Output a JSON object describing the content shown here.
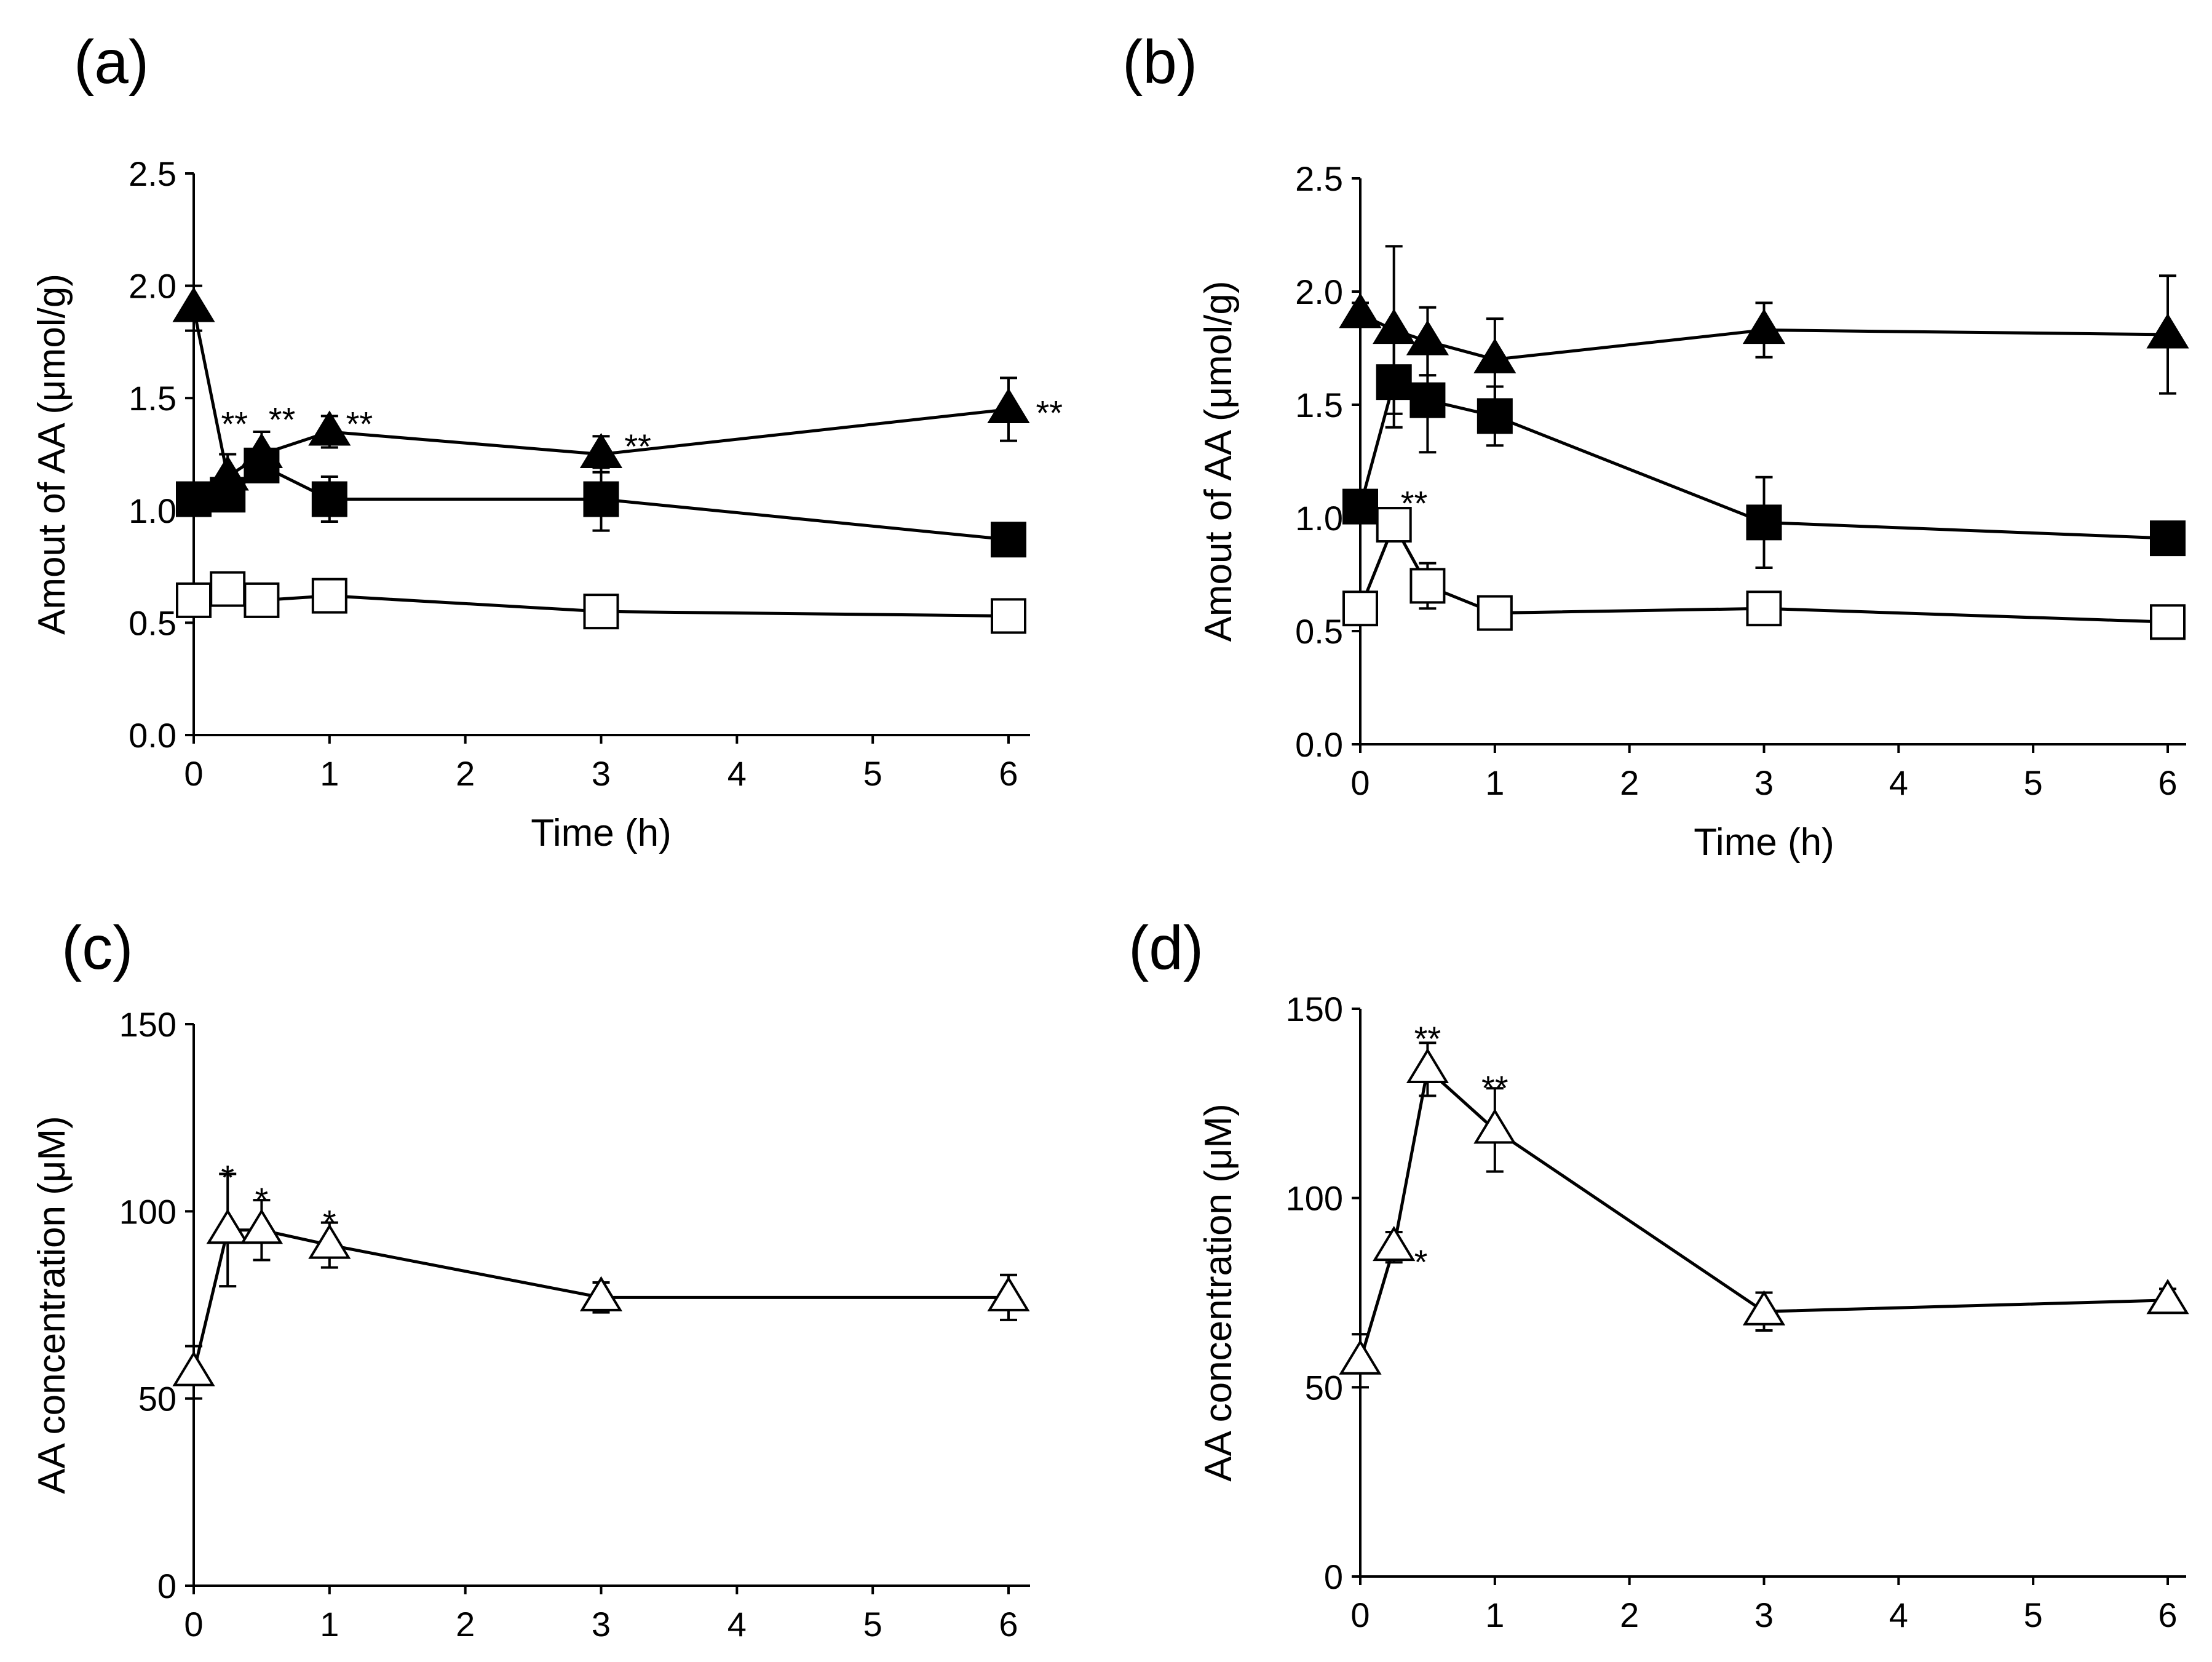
{
  "chart_data": [
    {
      "id": "a",
      "type": "line",
      "panel_label": "(a)",
      "xlabel": "Time (h)",
      "ylabel": "Amout of AA (μmol/g)",
      "xlim": [
        0,
        6
      ],
      "ylim": [
        0,
        2.5
      ],
      "xticks": [
        0,
        1,
        2,
        3,
        4,
        5,
        6
      ],
      "yticks": [
        "0.0",
        "0.5",
        "1.0",
        "1.5",
        "2.0",
        "2.5"
      ],
      "series": [
        {
          "name": "filled-triangle",
          "marker": "triangle-filled",
          "x": [
            0,
            0.25,
            0.5,
            1,
            3,
            6
          ],
          "values": [
            1.9,
            1.15,
            1.25,
            1.35,
            1.25,
            1.45
          ],
          "err": [
            0.1,
            0.1,
            0.1,
            0.07,
            0.08,
            0.14
          ]
        },
        {
          "name": "filled-square",
          "marker": "square-filled",
          "x": [
            0,
            0.25,
            0.5,
            1,
            3,
            6
          ],
          "values": [
            1.05,
            1.07,
            1.2,
            1.05,
            1.05,
            0.87
          ],
          "err": [
            0.04,
            0.05,
            0.05,
            0.1,
            0.14,
            0.03
          ]
        },
        {
          "name": "open-square",
          "marker": "square-open",
          "x": [
            0,
            0.25,
            0.5,
            1,
            3,
            6
          ],
          "values": [
            0.6,
            0.65,
            0.6,
            0.62,
            0.55,
            0.53
          ],
          "err": [
            0.04,
            0.04,
            0.03,
            0.03,
            0.03,
            0.03
          ]
        }
      ],
      "annotations": [
        {
          "text": "**",
          "x": 0.3,
          "y": 1.4
        },
        {
          "text": "**",
          "x": 0.65,
          "y": 1.42
        },
        {
          "text": "**",
          "x": 1.22,
          "y": 1.4
        },
        {
          "text": "**",
          "x": 3.27,
          "y": 1.3
        },
        {
          "text": "**",
          "x": 6.3,
          "y": 1.45
        }
      ]
    },
    {
      "id": "b",
      "type": "line",
      "panel_label": "(b)",
      "xlabel": "Time (h)",
      "ylabel": "Amout of AA (μmol/g)",
      "xlim": [
        0,
        6
      ],
      "ylim": [
        0,
        2.5
      ],
      "xticks": [
        0,
        1,
        2,
        3,
        4,
        5,
        6
      ],
      "yticks": [
        "0.0",
        "0.5",
        "1.0",
        "1.5",
        "2.0",
        "2.5"
      ],
      "series": [
        {
          "name": "filled-triangle",
          "marker": "triangle-filled",
          "x": [
            0,
            0.25,
            0.5,
            1,
            3,
            6
          ],
          "values": [
            1.9,
            1.83,
            1.78,
            1.7,
            1.83,
            1.81
          ],
          "err": [
            0.05,
            0.37,
            0.15,
            0.18,
            0.12,
            0.26
          ]
        },
        {
          "name": "filled-square",
          "marker": "square-filled",
          "x": [
            0,
            0.25,
            0.5,
            1,
            3,
            6
          ],
          "values": [
            1.05,
            1.6,
            1.52,
            1.45,
            0.98,
            0.91
          ],
          "err": [
            0.04,
            0.2,
            0.23,
            0.13,
            0.2,
            0.04
          ]
        },
        {
          "name": "open-square",
          "marker": "square-open",
          "x": [
            0,
            0.25,
            0.5,
            1,
            3,
            6
          ],
          "values": [
            0.6,
            0.97,
            0.7,
            0.58,
            0.6,
            0.54
          ],
          "err": [
            0.04,
            0.06,
            0.1,
            0.03,
            0.04,
            0.03
          ]
        }
      ],
      "annotations": [
        {
          "text": "**",
          "x": 0.4,
          "y": 1.08
        }
      ]
    },
    {
      "id": "c",
      "type": "line",
      "panel_label": "(c)",
      "xlabel": "",
      "ylabel": "AA concentration (μM)",
      "xlim": [
        0,
        6
      ],
      "ylim": [
        0,
        150
      ],
      "xticks": [
        0,
        1,
        2,
        3,
        4,
        5,
        6
      ],
      "yticks": [
        "0",
        "50",
        "100",
        "150"
      ],
      "series": [
        {
          "name": "open-triangle",
          "marker": "triangle-open",
          "x": [
            0,
            0.25,
            0.5,
            1,
            3,
            6
          ],
          "values": [
            57,
            95,
            95,
            91,
            77,
            77
          ],
          "err": [
            7,
            15,
            8,
            6,
            4,
            6
          ]
        }
      ],
      "annotations": [
        {
          "text": "*",
          "x": 0.25,
          "y": 110
        },
        {
          "text": "*",
          "x": 0.5,
          "y": 104
        },
        {
          "text": "*",
          "x": 1,
          "y": 98
        }
      ]
    },
    {
      "id": "d",
      "type": "line",
      "panel_label": "(d)",
      "xlabel": "",
      "ylabel": "AA concentration (μM)",
      "xlim": [
        0,
        6
      ],
      "ylim": [
        0,
        150
      ],
      "xticks": [
        0,
        1,
        2,
        3,
        4,
        5,
        6
      ],
      "yticks": [
        "0",
        "50",
        "100",
        "150"
      ],
      "series": [
        {
          "name": "open-triangle",
          "marker": "triangle-open",
          "x": [
            0,
            0.25,
            0.5,
            1,
            3,
            6
          ],
          "values": [
            57,
            87,
            134,
            118,
            70,
            73
          ],
          "err": [
            7,
            4,
            7,
            11,
            5,
            3
          ]
        }
      ],
      "annotations": [
        {
          "text": "**",
          "x": 0.5,
          "y": 143
        },
        {
          "text": "**",
          "x": 1,
          "y": 130
        },
        {
          "text": "*",
          "x": 0.45,
          "y": 84
        }
      ]
    }
  ]
}
